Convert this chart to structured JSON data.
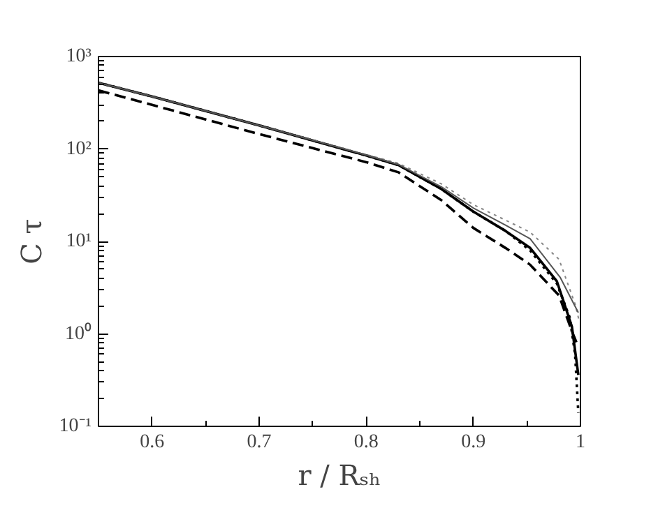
{
  "chart_data": {
    "type": "line",
    "xlabel": "r / Rₛₕ",
    "ylabel": "C τ",
    "log": "y",
    "grid": false,
    "xlim": [
      0.55,
      1
    ],
    "ylim": [
      0.1,
      1000
    ],
    "xticks": [
      0.6,
      0.7,
      0.8,
      0.9,
      1
    ],
    "yticks": [
      {
        "value": 0.1,
        "label": "10⁻¹"
      },
      {
        "value": 1,
        "label": "10⁰"
      },
      {
        "value": 10,
        "label": "10¹"
      },
      {
        "value": 100,
        "label": "10²"
      },
      {
        "value": 1000,
        "label": "10³"
      }
    ],
    "series": [
      {
        "color": "#000000",
        "line_style": "solid",
        "x": [
          0.55,
          0.6,
          0.7,
          0.8,
          0.83,
          0.87,
          0.9,
          0.93,
          0.953,
          0.978,
          0.992,
          0.998
        ],
        "values": [
          520,
          370,
          180,
          85,
          67,
          37,
          21,
          13,
          8.5,
          3.7,
          1.2,
          0.36
        ]
      },
      {
        "color": "#000000",
        "line_style": "dashed",
        "x": [
          0.55,
          0.6,
          0.7,
          0.8,
          0.83,
          0.87,
          0.9,
          0.93,
          0.953,
          0.98,
          0.992,
          0.997
        ],
        "values": [
          430,
          300,
          145,
          72,
          56,
          28,
          14,
          8.5,
          5.6,
          2.6,
          1.07,
          0.77
        ]
      },
      {
        "color": "#000000",
        "line_style": "dotted",
        "x": [
          0.55,
          0.6,
          0.7,
          0.8,
          0.83,
          0.87,
          0.9,
          0.93,
          0.953,
          0.978,
          0.99,
          0.995,
          0.998
        ],
        "values": [
          520,
          370,
          180,
          85,
          67,
          37,
          21,
          13,
          8,
          3.5,
          1.5,
          0.6,
          0.14
        ]
      },
      {
        "color": "#888888",
        "line_style": "dotted",
        "x": [
          0.55,
          0.6,
          0.7,
          0.8,
          0.83,
          0.87,
          0.9,
          0.93,
          0.953,
          0.98,
          0.995,
          0.999
        ],
        "values": [
          520,
          370,
          180,
          87,
          70,
          42,
          25,
          17,
          12.6,
          6.4,
          2.1,
          1.35
        ]
      },
      {
        "color": "#555555",
        "line_style": "solid",
        "x": [
          0.55,
          0.6,
          0.7,
          0.8,
          0.83,
          0.87,
          0.9,
          0.93,
          0.953,
          0.981,
          0.998
        ],
        "values": [
          520,
          370,
          180,
          86,
          68,
          39,
          23,
          15,
          10.7,
          4.1,
          1.7
        ]
      }
    ]
  }
}
